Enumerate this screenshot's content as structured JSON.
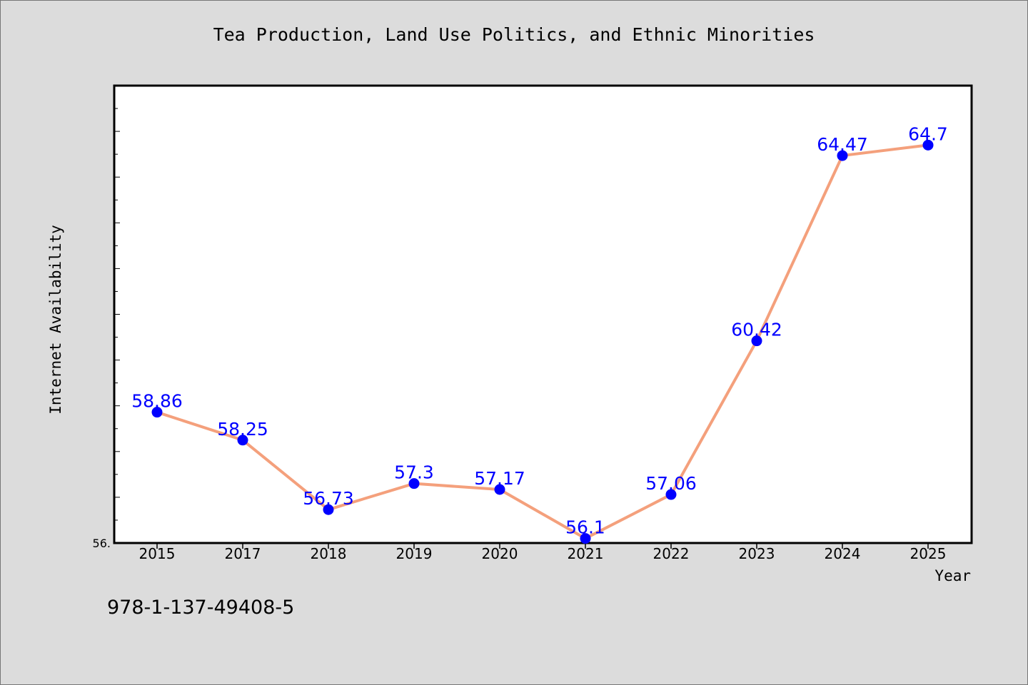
{
  "chart_data": {
    "type": "line",
    "title": "Tea Production, Land Use Politics, and Ethnic Minorities",
    "xlabel": "Year",
    "ylabel": "Internet Availability",
    "categories": [
      "2015",
      "2017",
      "2018",
      "2019",
      "2020",
      "2021",
      "2022",
      "2023",
      "2024",
      "2025"
    ],
    "series": [
      {
        "values": [
          58.86,
          58.25,
          56.73,
          57.3,
          57.17,
          56.1,
          57.06,
          60.42,
          64.47,
          64.7
        ]
      }
    ],
    "data_labels": [
      "58.86",
      "58.25",
      "56.73",
      "57.3",
      "57.17",
      "56.1",
      "57.06",
      "60.42",
      "64.47",
      "64.7"
    ],
    "y_tick_label": "56.",
    "ylim": [
      56.0,
      66.0
    ],
    "grid": false,
    "line_color": "#f4a07c",
    "marker_color": "#0000ff",
    "label_color": "#0000ff"
  },
  "footer_text": "978-1-137-49408-5"
}
